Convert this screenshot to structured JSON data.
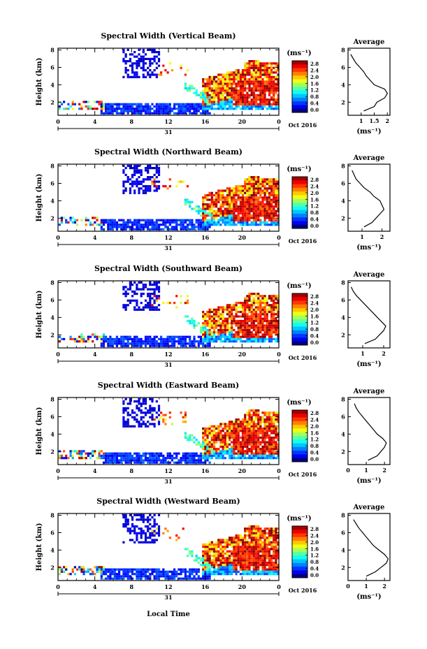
{
  "figure": {
    "xlabel": "Local Time",
    "date_label": "Oct 2016",
    "day_label": "31",
    "colorbar_unit": "(ms⁻¹)",
    "avg_title": "Average",
    "avg_xlabel": "(ms⁻¹)"
  },
  "chart_data": [
    {
      "type": "heatmap",
      "title": "Spectral Width (Vertical Beam)",
      "ylabel": "Height (km)",
      "x_ticks": [
        "0",
        "4",
        "8",
        "12",
        "16",
        "20",
        "0"
      ],
      "y_ticks": [
        "2",
        "4",
        "6",
        "8"
      ],
      "xlim": [
        0,
        24
      ],
      "ylim": [
        0.5,
        8.2
      ],
      "colorbar": {
        "ticks": [
          "2.8",
          "2.4",
          "2.0",
          "1.6",
          "1.2",
          "0.8",
          "0.4",
          "0.0"
        ],
        "range": [
          0,
          2.8
        ]
      },
      "average_profile": {
        "x_ticks": [
          "1",
          "1.5",
          "2"
        ],
        "xlim": [
          0.5,
          2.1
        ],
        "ylim": [
          0.5,
          8.2
        ],
        "height_km": [
          1.0,
          1.5,
          2.0,
          2.5,
          3.0,
          3.5,
          4.0,
          4.5,
          5.0,
          5.5,
          6.0,
          6.5,
          7.0,
          7.5
        ],
        "width_ms": [
          1.1,
          1.5,
          1.6,
          1.9,
          2.0,
          1.9,
          1.5,
          1.35,
          1.2,
          1.1,
          0.95,
          0.8,
          0.7,
          0.6
        ]
      }
    },
    {
      "type": "heatmap",
      "title": "Spectral Width (Northward Beam)",
      "ylabel": "Height (km)",
      "x_ticks": [
        "0",
        "4",
        "8",
        "12",
        "16",
        "20",
        "0"
      ],
      "y_ticks": [
        "2",
        "4",
        "6",
        "8"
      ],
      "xlim": [
        0,
        24
      ],
      "ylim": [
        0.5,
        8.2
      ],
      "colorbar": {
        "ticks": [
          "2.8",
          "2.4",
          "2.0",
          "1.6",
          "1.2",
          "0.8",
          "0.4",
          "0.0"
        ],
        "range": [
          0,
          2.8
        ]
      },
      "average_profile": {
        "x_ticks": [
          "1",
          "2"
        ],
        "xlim": [
          0.3,
          2.4
        ],
        "ylim": [
          0.5,
          8.2
        ],
        "height_km": [
          1.0,
          1.5,
          2.0,
          2.5,
          3.0,
          3.5,
          4.0,
          4.5,
          5.0,
          5.5,
          6.0,
          6.5,
          7.0,
          7.5
        ],
        "width_ms": [
          1.1,
          1.5,
          1.7,
          1.9,
          2.1,
          2.0,
          1.9,
          1.6,
          1.4,
          1.1,
          0.9,
          0.7,
          0.6,
          0.5
        ]
      }
    },
    {
      "type": "heatmap",
      "title": "Spectral Width (Southward Beam)",
      "ylabel": "Height (km)",
      "x_ticks": [
        "0",
        "4",
        "8",
        "12",
        "16",
        "20",
        "0"
      ],
      "y_ticks": [
        "2",
        "4",
        "6",
        "8"
      ],
      "xlim": [
        0,
        24
      ],
      "ylim": [
        0.5,
        8.2
      ],
      "colorbar": {
        "ticks": [
          "2.8",
          "2.4",
          "2.0",
          "1.6",
          "1.2",
          "0.8",
          "0.4",
          "0.0"
        ],
        "range": [
          0,
          2.8
        ]
      },
      "average_profile": {
        "x_ticks": [
          "1",
          "2"
        ],
        "xlim": [
          0.3,
          2.3
        ],
        "ylim": [
          0.5,
          8.2
        ],
        "height_km": [
          1.0,
          1.5,
          2.0,
          2.5,
          3.0,
          3.5,
          4.0,
          4.5,
          5.0,
          5.5,
          6.0,
          6.5,
          7.0,
          7.5
        ],
        "width_ms": [
          1.1,
          1.6,
          1.8,
          2.0,
          2.1,
          1.9,
          1.7,
          1.5,
          1.3,
          1.1,
          0.9,
          0.7,
          0.55,
          0.45
        ]
      }
    },
    {
      "type": "heatmap",
      "title": "Spectral Width (Eastward Beam)",
      "ylabel": "Height (km)",
      "x_ticks": [
        "0",
        "4",
        "8",
        "12",
        "16",
        "20",
        "0"
      ],
      "y_ticks": [
        "2",
        "4",
        "6",
        "8"
      ],
      "xlim": [
        0,
        24
      ],
      "ylim": [
        0.5,
        8.2
      ],
      "colorbar": {
        "ticks": [
          "2.8",
          "2.4",
          "2.0",
          "1.6",
          "1.2",
          "0.8",
          "0.4",
          "0.0"
        ],
        "range": [
          0,
          2.8
        ]
      },
      "average_profile": {
        "x_ticks": [
          "0",
          "1",
          "2"
        ],
        "xlim": [
          0,
          2.3
        ],
        "ylim": [
          0.5,
          8.2
        ],
        "height_km": [
          1.0,
          1.5,
          2.0,
          2.5,
          3.0,
          3.5,
          4.0,
          4.5,
          5.0,
          5.5,
          6.0,
          6.5,
          7.0,
          7.5
        ],
        "width_ms": [
          1.1,
          1.6,
          1.8,
          2.0,
          2.1,
          1.9,
          1.6,
          1.4,
          1.2,
          1.0,
          0.8,
          0.6,
          0.45,
          0.35
        ]
      }
    },
    {
      "type": "heatmap",
      "title": "Spectral Width (Westward Beam)",
      "ylabel": "Height (km)",
      "x_ticks": [
        "0",
        "4",
        "8",
        "12",
        "16",
        "20",
        "0"
      ],
      "y_ticks": [
        "2",
        "4",
        "6",
        "8"
      ],
      "xlim": [
        0,
        24
      ],
      "ylim": [
        0.5,
        8.2
      ],
      "colorbar": {
        "ticks": [
          "2.8",
          "2.4",
          "2.0",
          "1.6",
          "1.2",
          "0.8",
          "0.4",
          "0.0"
        ],
        "range": [
          0,
          2.8
        ]
      },
      "average_profile": {
        "x_ticks": [
          "0",
          "1",
          "2"
        ],
        "xlim": [
          0,
          2.3
        ],
        "ylim": [
          0.5,
          8.2
        ],
        "height_km": [
          1.0,
          1.5,
          2.0,
          2.5,
          3.0,
          3.5,
          4.0,
          4.5,
          5.0,
          5.5,
          6.0,
          6.5,
          7.0,
          7.5
        ],
        "width_ms": [
          1.0,
          1.5,
          1.8,
          2.1,
          2.2,
          2.0,
          1.7,
          1.4,
          1.2,
          1.0,
          0.8,
          0.6,
          0.45,
          0.3
        ]
      }
    }
  ]
}
